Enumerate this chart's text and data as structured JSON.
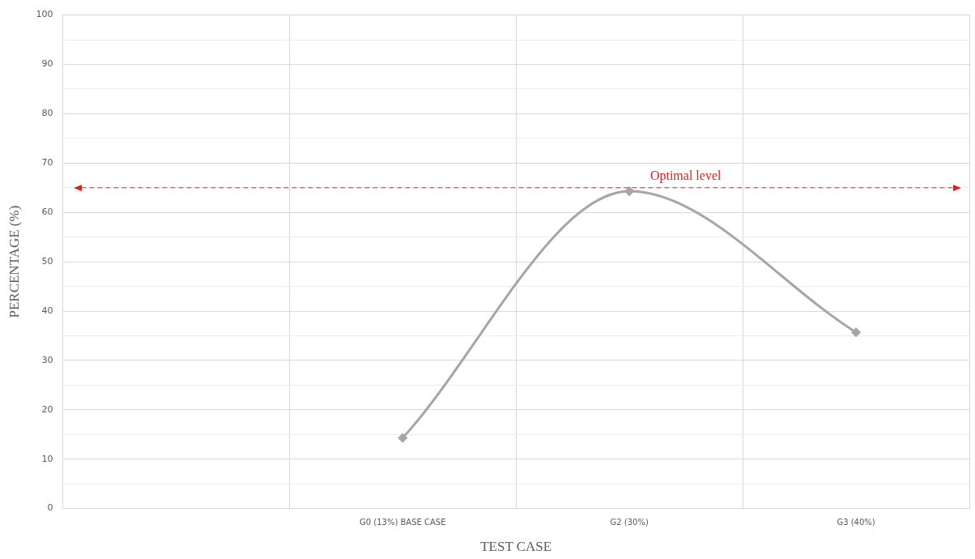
{
  "chart_data": {
    "type": "line",
    "xlabel": "TEST CASE",
    "ylabel": "PERCENTAGE (%)",
    "categories": [
      null,
      "G0 (13%) BASE CASE",
      "G2 (30%)",
      "G3 (40%)"
    ],
    "series": [
      {
        "color": "#a6a6a6",
        "values": [
          null,
          14.3,
          64.3,
          35.7
        ]
      }
    ],
    "ylim": [
      0,
      100
    ],
    "yticks": [
      0,
      {
        "value": 5,
        "label": null
      },
      10,
      {
        "value": 15,
        "label": null
      },
      20,
      {
        "value": 25,
        "label": null
      },
      30,
      {
        "value": 35,
        "label": null
      },
      40,
      {
        "value": 45,
        "label": null
      },
      50,
      {
        "value": 55,
        "label": null
      },
      60,
      {
        "value": 65,
        "label": null
      },
      70,
      {
        "value": 75,
        "label": null
      },
      80,
      {
        "value": 85,
        "label": null
      },
      90,
      {
        "value": 95,
        "label": null
      },
      100
    ],
    "ref_lines": [
      {
        "axis": "y",
        "value": 65,
        "label": "Optimal level",
        "color": "#e02020",
        "line_style": "dashed"
      }
    ],
    "grid": true,
    "legend": false,
    "marker": "diamond",
    "line_style": "solid"
  }
}
